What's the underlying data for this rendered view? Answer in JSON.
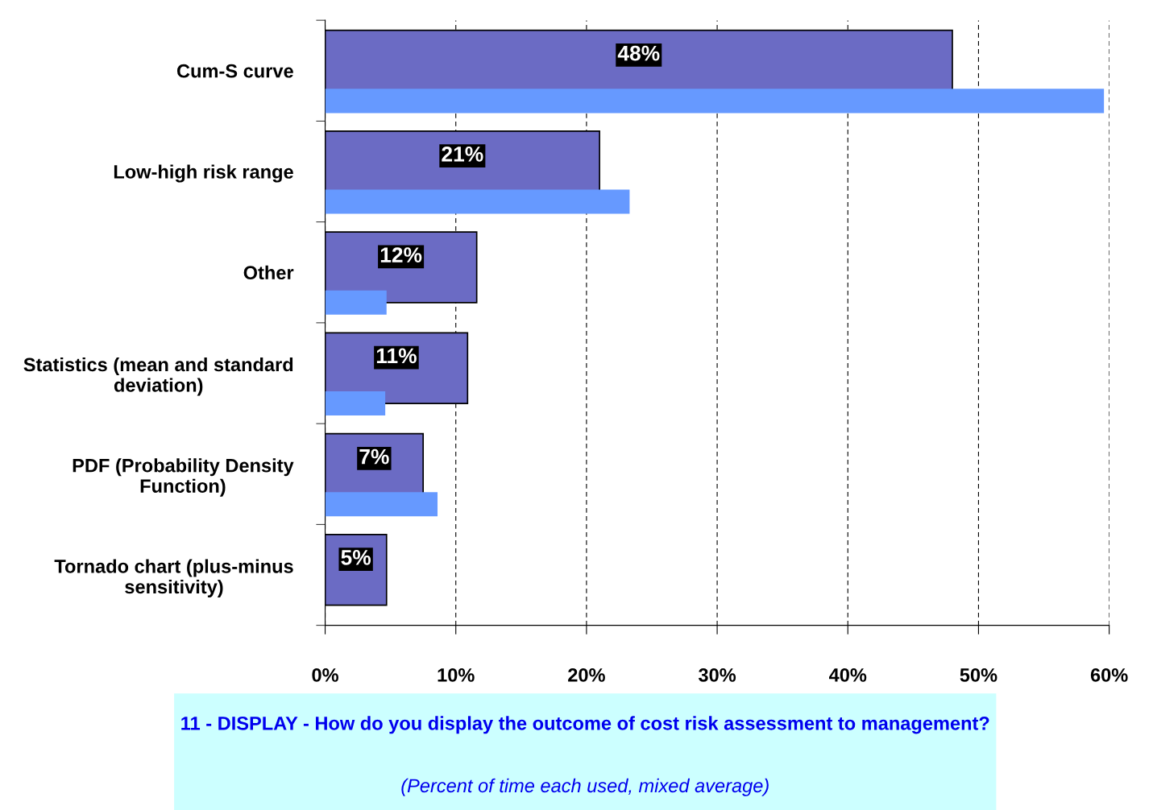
{
  "chart_data": {
    "type": "bar",
    "orientation": "horizontal",
    "title": "11 - DISPLAY - How do you display the outcome of cost risk assessment to management?",
    "subtitle": "(Percent of time each used, mixed average)",
    "categories": [
      "Cum-S curve",
      "Low-high risk range",
      "Other",
      "Statistics (mean and standard deviation)",
      "PDF (Probability Density Function)",
      "Tornado chart (plus-minus sensitivity)"
    ],
    "series": [
      {
        "color": "#6b6bc4",
        "values": [
          48.0,
          21.0,
          11.6,
          10.9,
          7.5,
          4.7
        ],
        "value_labels": [
          "48%",
          "21%",
          "12%",
          "11%",
          "7%",
          "5%"
        ]
      },
      {
        "color": "#6699ff",
        "values": [
          59.6,
          23.3,
          4.7,
          4.6,
          8.6,
          null
        ]
      }
    ],
    "xlim": [
      0,
      60
    ],
    "xticks": [
      {
        "value": 0,
        "label": "0%"
      },
      {
        "value": 10,
        "label": "10%"
      },
      {
        "value": 20,
        "label": "20%"
      },
      {
        "value": 30,
        "label": "30%"
      },
      {
        "value": 40,
        "label": "40%"
      },
      {
        "value": 50,
        "label": "50%"
      },
      {
        "value": 60,
        "label": "60%"
      }
    ],
    "grid": "x",
    "legend": false
  }
}
